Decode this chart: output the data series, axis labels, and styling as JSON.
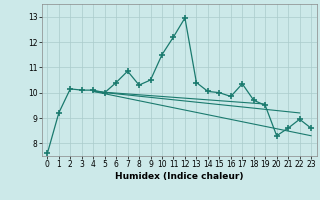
{
  "xlabel": "Humidex (Indice chaleur)",
  "xlim": [
    -0.5,
    23.5
  ],
  "ylim": [
    7.5,
    13.5
  ],
  "yticks": [
    8,
    9,
    10,
    11,
    12,
    13
  ],
  "xticks": [
    0,
    1,
    2,
    3,
    4,
    5,
    6,
    7,
    8,
    9,
    10,
    11,
    12,
    13,
    14,
    15,
    16,
    17,
    18,
    19,
    20,
    21,
    22,
    23
  ],
  "bg_color": "#cce9e9",
  "line_color": "#1a7a6e",
  "grid_color": "#aacccc",
  "main_series": {
    "x": [
      0,
      1,
      2,
      3,
      4,
      5,
      6,
      7,
      8,
      9,
      10,
      11,
      12,
      13,
      14,
      15,
      16,
      17,
      18,
      19,
      20,
      21,
      22,
      23
    ],
    "y": [
      7.6,
      9.2,
      10.15,
      10.1,
      10.1,
      10.0,
      10.4,
      10.85,
      10.3,
      10.5,
      11.5,
      12.2,
      12.95,
      10.4,
      10.05,
      10.0,
      9.85,
      10.35,
      9.7,
      9.5,
      8.3,
      8.6,
      8.95,
      8.6
    ]
  },
  "reg_lines": [
    {
      "x": [
        4,
        19
      ],
      "y": [
        10.05,
        9.55
      ]
    },
    {
      "x": [
        4,
        22
      ],
      "y": [
        10.05,
        9.2
      ]
    },
    {
      "x": [
        4,
        23
      ],
      "y": [
        10.05,
        8.3
      ]
    }
  ]
}
